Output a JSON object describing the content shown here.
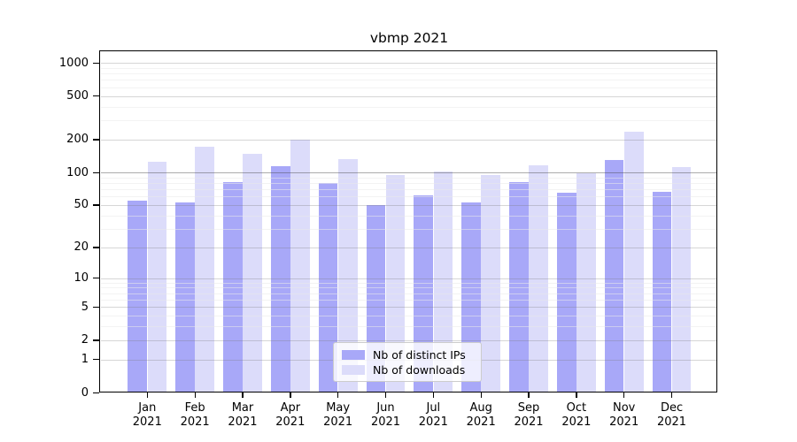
{
  "title": "vbmp 2021",
  "colors": {
    "distinct_ips_bar": "#a8a8f8",
    "downloads_bar": "#dcdcfa",
    "frame": "#000000",
    "grid_major": "#d6d6d6",
    "grid_minor": "#f2f2f2",
    "grid_emphasis": "#ababab",
    "legend_border": "#cccccc"
  },
  "chart_data": {
    "type": "bar",
    "title": "vbmp 2021",
    "year": "2021",
    "months": [
      "Jan",
      "Feb",
      "Mar",
      "Apr",
      "May",
      "Jun",
      "Jul",
      "Aug",
      "Sep",
      "Oct",
      "Nov",
      "Dec"
    ],
    "categories": [
      "Jan 2021",
      "Feb 2021",
      "Mar 2021",
      "Apr 2021",
      "May 2021",
      "Jun 2021",
      "Jul 2021",
      "Aug 2021",
      "Sep 2021",
      "Oct 2021",
      "Nov 2021",
      "Dec 2021"
    ],
    "series": [
      {
        "name": "Nb of distinct IPs",
        "key": "distinct-ips",
        "color": "#a8a8f8",
        "values": [
          55,
          53,
          81,
          114,
          80,
          50,
          61,
          53,
          82,
          65,
          130,
          66
        ]
      },
      {
        "name": "Nb of downloads",
        "key": "downloads",
        "color": "#dcdcfa",
        "values": [
          125,
          172,
          147,
          198,
          132,
          95,
          101,
          95,
          116,
          98,
          238,
          111
        ]
      }
    ],
    "yscale": "log1p",
    "ylim": [
      0,
      1280
    ],
    "y_major_ticks": [
      1000,
      500,
      200,
      100,
      50,
      20,
      10,
      5,
      2,
      1,
      0
    ],
    "y_minor_gridlines": [
      3,
      4,
      6,
      7,
      8,
      9,
      30,
      40,
      60,
      70,
      80,
      90,
      300,
      400,
      600,
      700,
      800,
      900
    ],
    "emphasized_gridline": 100,
    "grid": true,
    "legend_position": "lower center"
  }
}
